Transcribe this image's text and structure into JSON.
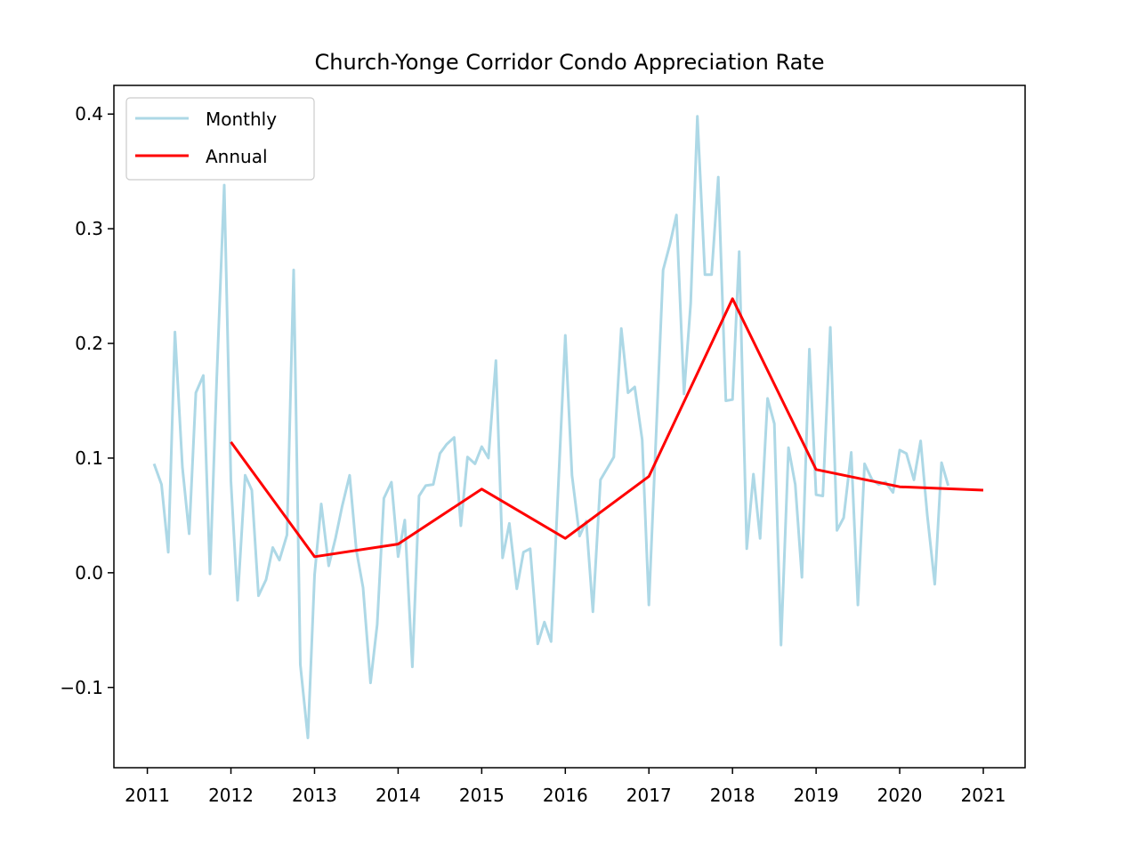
{
  "chart_data": {
    "type": "line",
    "title": "Church-Yonge Corridor Condo Appreciation Rate",
    "xlabel": "",
    "ylabel": "",
    "xlim": [
      2010.6,
      2021.5
    ],
    "ylim": [
      -0.17,
      0.425
    ],
    "x_ticks": [
      2011,
      2012,
      2013,
      2014,
      2015,
      2016,
      2017,
      2018,
      2019,
      2020,
      2021
    ],
    "x_tick_labels": [
      "2011",
      "2012",
      "2013",
      "2014",
      "2015",
      "2016",
      "2017",
      "2018",
      "2019",
      "2020",
      "2021"
    ],
    "y_ticks": [
      -0.1,
      0.0,
      0.1,
      0.2,
      0.3,
      0.4
    ],
    "y_tick_labels": [
      "−0.1",
      "0.0",
      "0.1",
      "0.2",
      "0.3",
      "0.4"
    ],
    "grid": false,
    "legend": {
      "placement": "upper-left",
      "entries": [
        "Monthly",
        "Annual"
      ]
    },
    "series": [
      {
        "name": "Monthly",
        "color": "#add8e6",
        "points": [
          [
            2011.08,
            0.095
          ],
          [
            2011.17,
            0.077
          ],
          [
            2011.25,
            0.018
          ],
          [
            2011.33,
            0.21
          ],
          [
            2011.42,
            0.092
          ],
          [
            2011.5,
            0.034
          ],
          [
            2011.58,
            0.157
          ],
          [
            2011.67,
            0.172
          ],
          [
            2011.75,
            -0.001
          ],
          [
            2011.83,
            0.17
          ],
          [
            2011.92,
            0.338
          ],
          [
            2012.0,
            0.08
          ],
          [
            2012.08,
            -0.024
          ],
          [
            2012.17,
            0.085
          ],
          [
            2012.25,
            0.072
          ],
          [
            2012.33,
            -0.02
          ],
          [
            2012.42,
            -0.006
          ],
          [
            2012.5,
            0.022
          ],
          [
            2012.58,
            0.011
          ],
          [
            2012.67,
            0.033
          ],
          [
            2012.75,
            0.264
          ],
          [
            2012.83,
            -0.08
          ],
          [
            2012.92,
            -0.144
          ],
          [
            2013.0,
            -0.002
          ],
          [
            2013.08,
            0.06
          ],
          [
            2013.17,
            0.006
          ],
          [
            2013.25,
            0.03
          ],
          [
            2013.33,
            0.058
          ],
          [
            2013.42,
            0.085
          ],
          [
            2013.5,
            0.02
          ],
          [
            2013.58,
            -0.013
          ],
          [
            2013.67,
            -0.096
          ],
          [
            2013.75,
            -0.045
          ],
          [
            2013.83,
            0.065
          ],
          [
            2013.92,
            0.079
          ],
          [
            2014.0,
            0.014
          ],
          [
            2014.08,
            0.046
          ],
          [
            2014.17,
            -0.082
          ],
          [
            2014.25,
            0.067
          ],
          [
            2014.33,
            0.076
          ],
          [
            2014.42,
            0.077
          ],
          [
            2014.5,
            0.104
          ],
          [
            2014.58,
            0.112
          ],
          [
            2014.67,
            0.118
          ],
          [
            2014.75,
            0.041
          ],
          [
            2014.83,
            0.101
          ],
          [
            2014.92,
            0.095
          ],
          [
            2015.0,
            0.11
          ],
          [
            2015.08,
            0.1
          ],
          [
            2015.17,
            0.185
          ],
          [
            2015.25,
            0.013
          ],
          [
            2015.33,
            0.043
          ],
          [
            2015.42,
            -0.014
          ],
          [
            2015.5,
            0.018
          ],
          [
            2015.58,
            0.021
          ],
          [
            2015.67,
            -0.062
          ],
          [
            2015.75,
            -0.043
          ],
          [
            2015.83,
            -0.06
          ],
          [
            2016.0,
            0.207
          ],
          [
            2016.08,
            0.085
          ],
          [
            2016.17,
            0.032
          ],
          [
            2016.25,
            0.045
          ],
          [
            2016.33,
            -0.034
          ],
          [
            2016.42,
            0.081
          ],
          [
            2016.5,
            0.091
          ],
          [
            2016.58,
            0.101
          ],
          [
            2016.67,
            0.213
          ],
          [
            2016.75,
            0.157
          ],
          [
            2016.83,
            0.162
          ],
          [
            2016.92,
            0.116
          ],
          [
            2017.0,
            -0.028
          ],
          [
            2017.17,
            0.264
          ],
          [
            2017.25,
            0.286
          ],
          [
            2017.33,
            0.312
          ],
          [
            2017.42,
            0.156
          ],
          [
            2017.5,
            0.235
          ],
          [
            2017.58,
            0.398
          ],
          [
            2017.67,
            0.26
          ],
          [
            2017.75,
            0.26
          ],
          [
            2017.83,
            0.345
          ],
          [
            2017.92,
            0.15
          ],
          [
            2018.0,
            0.151
          ],
          [
            2018.08,
            0.28
          ],
          [
            2018.17,
            0.021
          ],
          [
            2018.25,
            0.086
          ],
          [
            2018.33,
            0.03
          ],
          [
            2018.42,
            0.152
          ],
          [
            2018.5,
            0.13
          ],
          [
            2018.58,
            -0.063
          ],
          [
            2018.67,
            0.109
          ],
          [
            2018.75,
            0.077
          ],
          [
            2018.83,
            -0.004
          ],
          [
            2018.92,
            0.195
          ],
          [
            2019.0,
            0.068
          ],
          [
            2019.08,
            0.067
          ],
          [
            2019.17,
            0.214
          ],
          [
            2019.25,
            0.037
          ],
          [
            2019.33,
            0.048
          ],
          [
            2019.42,
            0.105
          ],
          [
            2019.5,
            -0.028
          ],
          [
            2019.58,
            0.095
          ],
          [
            2019.67,
            0.081
          ],
          [
            2019.75,
            0.077
          ],
          [
            2019.83,
            0.079
          ],
          [
            2019.92,
            0.07
          ],
          [
            2020.0,
            0.107
          ],
          [
            2020.08,
            0.104
          ],
          [
            2020.17,
            0.081
          ],
          [
            2020.25,
            0.115
          ],
          [
            2020.33,
            0.05
          ],
          [
            2020.42,
            -0.01
          ],
          [
            2020.5,
            0.096
          ],
          [
            2020.58,
            0.076
          ]
        ]
      },
      {
        "name": "Annual",
        "color": "#ff0000",
        "points": [
          [
            2012.0,
            0.114
          ],
          [
            2013.0,
            0.014
          ],
          [
            2014.0,
            0.025
          ],
          [
            2015.0,
            0.073
          ],
          [
            2016.0,
            0.03
          ],
          [
            2017.0,
            0.084
          ],
          [
            2018.0,
            0.239
          ],
          [
            2019.0,
            0.09
          ],
          [
            2020.0,
            0.075
          ],
          [
            2021.0,
            0.072
          ]
        ]
      }
    ]
  }
}
